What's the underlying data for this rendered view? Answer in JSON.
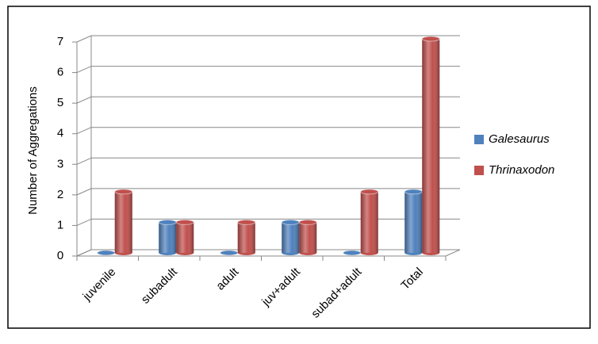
{
  "chart_data": {
    "type": "bar3d",
    "y_label": "Number of Aggregations",
    "categories": [
      "juvenile",
      "subadult",
      "adult",
      "juv+adult",
      "subad+adult",
      "Total"
    ],
    "series": [
      {
        "name": "Galesaurus",
        "color": "#4f81bd",
        "values": [
          0,
          1,
          0,
          1,
          0,
          2
        ]
      },
      {
        "name": "Thrinaxodon",
        "color": "#c0504d",
        "values": [
          2,
          1,
          1,
          1,
          2,
          7
        ]
      }
    ],
    "ylim": [
      0,
      7
    ],
    "yticks": [
      0,
      1,
      2,
      3,
      4,
      5,
      6,
      7
    ],
    "grid": true,
    "legend": "right"
  }
}
